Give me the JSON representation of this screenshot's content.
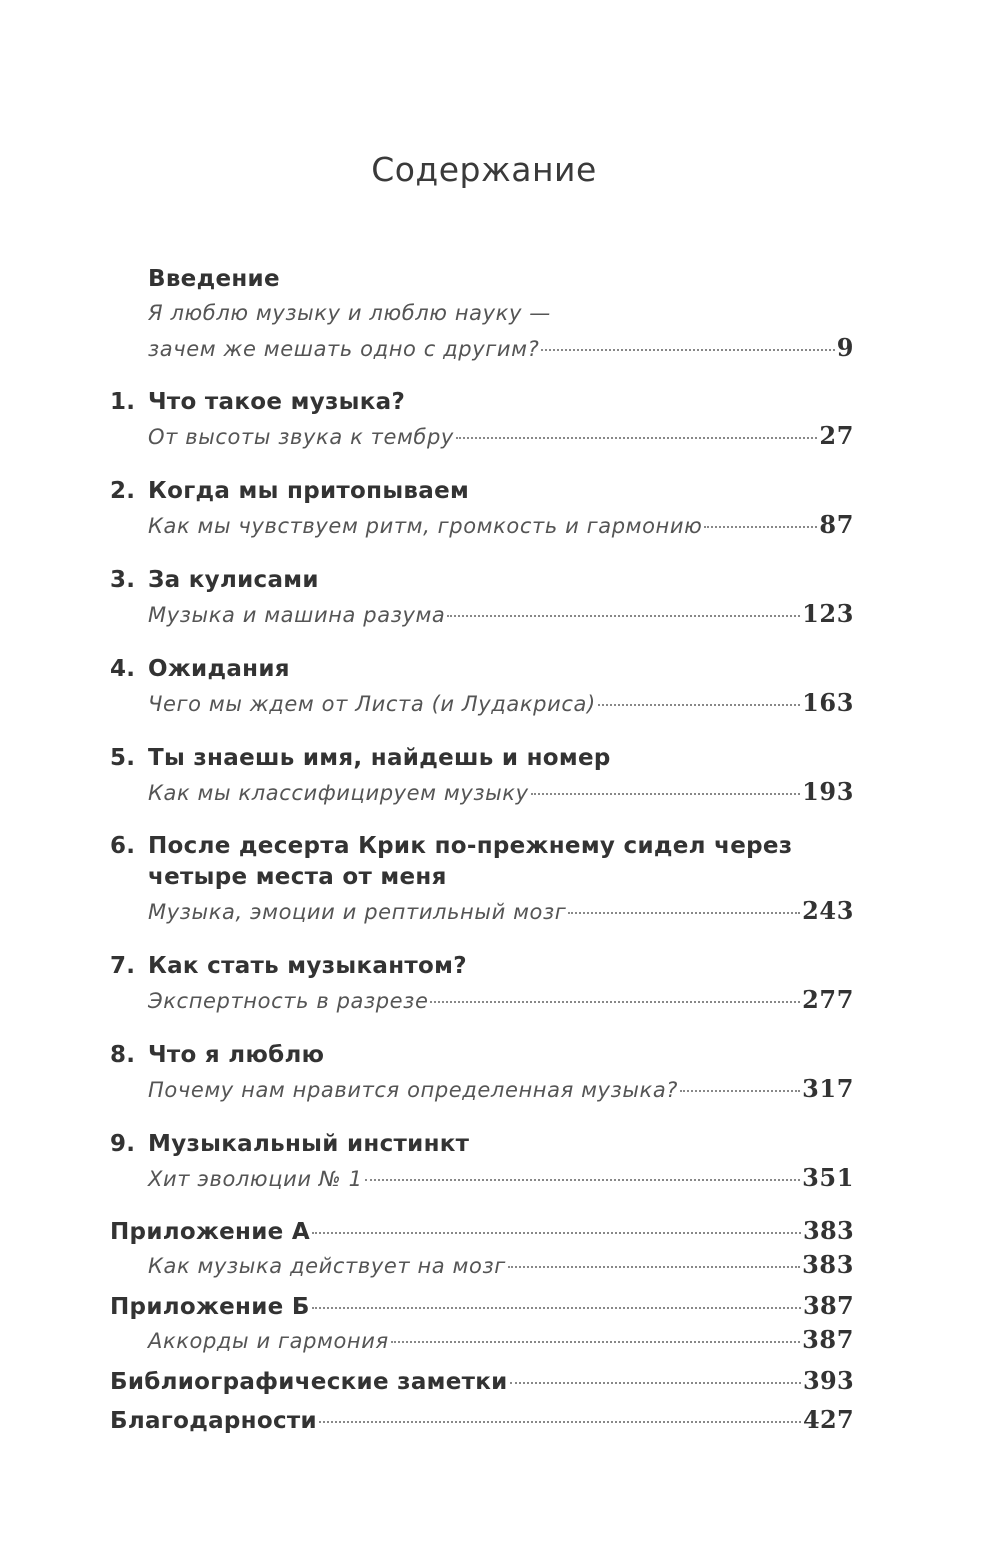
{
  "title": "Содержание",
  "entries": [
    {
      "number": "",
      "title": "Введение",
      "subtitle_lines": [
        "Я люблю музыку и люблю науку —",
        "зачем же мешать одно с другим?"
      ],
      "page": "9"
    },
    {
      "number": "1.",
      "title": "Что такое музыка?",
      "subtitle_lines": [
        "От высоты звука к тембру"
      ],
      "page": "27"
    },
    {
      "number": "2.",
      "title": "Когда мы притопываем",
      "subtitle_lines": [
        "Как мы чувствуем ритм, громкость и гармонию"
      ],
      "page": "87"
    },
    {
      "number": "3.",
      "title": "За кулисами",
      "subtitle_lines": [
        "Музыка и машина разума"
      ],
      "page": "123"
    },
    {
      "number": "4.",
      "title": "Ожидания",
      "subtitle_lines": [
        "Чего мы ждем от Листа (и Лудакриса)"
      ],
      "page": "163"
    },
    {
      "number": "5.",
      "title": "Ты знаешь имя, найдешь и номер",
      "subtitle_lines": [
        "Как мы классифицируем музыку"
      ],
      "page": "193"
    },
    {
      "number": "6.",
      "title": "После десерта Крик по-прежнему сидел через четыре места от меня",
      "subtitle_lines": [
        "Музыка, эмоции и рептильный мозг"
      ],
      "page": "243"
    },
    {
      "number": "7.",
      "title": "Как стать музыкантом?",
      "subtitle_lines": [
        "Экспертность в разрезе"
      ],
      "page": "277"
    },
    {
      "number": "8.",
      "title": "Что я люблю",
      "subtitle_lines": [
        "Почему нам нравится определенная музыка?"
      ],
      "page": "317"
    },
    {
      "number": "9.",
      "title": "Музыкальный инстинкт",
      "subtitle_lines": [
        "Хит эволюции № 1"
      ],
      "page": "351"
    }
  ],
  "appendices": [
    {
      "title": "Приложение А",
      "page": "383",
      "subtitle": "Как музыка действует на мозг",
      "subtitle_page": "383"
    },
    {
      "title": "Приложение Б",
      "page": "387",
      "subtitle": "Аккорды и гармония",
      "subtitle_page": "387"
    },
    {
      "title": "Библиографические заметки",
      "page": "393"
    },
    {
      "title": "Благодарности",
      "page": "427"
    }
  ]
}
